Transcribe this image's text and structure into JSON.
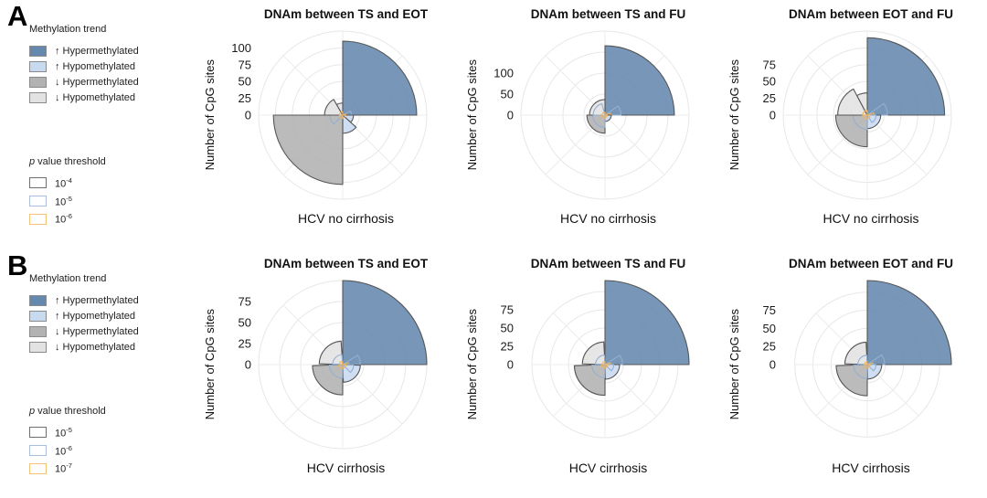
{
  "panels": [
    {
      "label": "A",
      "legend": {
        "methylation_title": "Methylation trend",
        "items": [
          {
            "label": "↑ Hypermethylated",
            "color": "#6589ae"
          },
          {
            "label": "↑ Hypomethylated",
            "color": "#c8daf0"
          },
          {
            "label": "↓ Hypermethylated",
            "color": "#b2b2b2"
          },
          {
            "label": "↓ Hypomethylated",
            "color": "#e2e2e2"
          }
        ],
        "pvalue_title_p": "p",
        "pvalue_title_rest": " value threshold",
        "thresholds": [
          {
            "base": "10",
            "exp": "-4",
            "border": "#6f6f6f"
          },
          {
            "base": "10",
            "exp": "-5",
            "border": "#a9c0dd"
          },
          {
            "base": "10",
            "exp": "-6",
            "border": "#f3c277"
          }
        ]
      }
    },
    {
      "label": "B",
      "legend": {
        "methylation_title": "Methylation trend",
        "items": [
          {
            "label": "↑ Hypermethylated",
            "color": "#6589ae"
          },
          {
            "label": "↑ Hypomethylated",
            "color": "#c8daf0"
          },
          {
            "label": "↓ Hypermethylated",
            "color": "#b2b2b2"
          },
          {
            "label": "↓ Hypomethylated",
            "color": "#e2e2e2"
          }
        ],
        "pvalue_title_p": "p",
        "pvalue_title_rest": " value threshold",
        "thresholds": [
          {
            "base": "10",
            "exp": "-5",
            "border": "#6f6f6f"
          },
          {
            "base": "10",
            "exp": "-6",
            "border": "#a9c0dd"
          },
          {
            "base": "10",
            "exp": "-7",
            "border": "#f3c277"
          }
        ]
      }
    }
  ],
  "chart_data": [
    {
      "type": "polar_bar",
      "panel": "A",
      "title": "DNAm between TS and EOT",
      "xlabel": "HCV no cirrhosis",
      "ylabel": "Number of CpG sites",
      "ticks": [
        100,
        75,
        50,
        25,
        0
      ],
      "ring_step": 25,
      "ring_max": 125,
      "grid": true,
      "series": [
        {
          "name": "↑ Hypermethylated",
          "quadrant": "NE",
          "color": "#6589ae",
          "sectors": [
            {
              "start": 0,
              "end": 90,
              "value": 110,
              "fill": true,
              "stroke": "#565656"
            },
            {
              "start": 62,
              "end": 90,
              "value": 13,
              "fill": false,
              "stroke": "#93afd1"
            },
            {
              "start": 75,
              "end": 90,
              "value": 5,
              "fill": false,
              "stroke": "#eeb35e"
            }
          ]
        },
        {
          "name": "↑ Hypomethylated",
          "quadrant": "SE",
          "color": "#c8daf0",
          "sectors": [
            {
              "start": 90,
              "end": 132,
              "value": 16,
              "fill": true,
              "stroke": "#565656"
            },
            {
              "start": 132,
              "end": 180,
              "value": 27,
              "fill": true,
              "stroke": "#565656"
            },
            {
              "start": 90,
              "end": 180,
              "value": 4,
              "fill": false,
              "stroke": "#eeb35e"
            }
          ]
        },
        {
          "name": "↓ Hypermethylated",
          "quadrant": "SW",
          "color": "#b2b2b2",
          "sectors": [
            {
              "start": 180,
              "end": 270,
              "value": 103,
              "fill": true,
              "stroke": "#565656"
            },
            {
              "start": 225,
              "end": 270,
              "value": 19,
              "fill": false,
              "stroke": "#93afd1"
            },
            {
              "start": 180,
              "end": 270,
              "value": 5,
              "fill": false,
              "stroke": "#eeb35e"
            }
          ]
        },
        {
          "name": "↓ Hypomethylated",
          "quadrant": "NW",
          "color": "#e2e2e2",
          "sectors": [
            {
              "start": 270,
              "end": 330,
              "value": 27,
              "fill": true,
              "stroke": "#565656"
            },
            {
              "start": 330,
              "end": 360,
              "value": 18,
              "fill": true,
              "stroke": "#565656"
            },
            {
              "start": 270,
              "end": 360,
              "value": 5,
              "fill": false,
              "stroke": "#eeb35e"
            }
          ]
        }
      ]
    },
    {
      "type": "polar_bar",
      "panel": "A",
      "title": "DNAm between TS and FU",
      "xlabel": "HCV no cirrhosis",
      "ylabel": "Number of CpG sites",
      "ticks": [
        100,
        50,
        0
      ],
      "ring_step": 50,
      "ring_max": 200,
      "grid": true,
      "series": [
        {
          "name": "↑ Hypermethylated",
          "quadrant": "NE",
          "color": "#6589ae",
          "sectors": [
            {
              "start": 0,
              "end": 90,
              "value": 165,
              "fill": true,
              "stroke": "#565656"
            },
            {
              "start": 55,
              "end": 90,
              "value": 38,
              "fill": false,
              "stroke": "#93afd1"
            },
            {
              "start": 72,
              "end": 90,
              "value": 14,
              "fill": false,
              "stroke": "#eeb35e"
            }
          ]
        },
        {
          "name": "↑ Hypomethylated",
          "quadrant": "SE",
          "color": "#c8daf0",
          "sectors": [
            {
              "start": 90,
              "end": 180,
              "value": 15,
              "fill": true,
              "stroke": "#565656"
            },
            {
              "start": 90,
              "end": 180,
              "value": 5,
              "fill": false,
              "stroke": "#eeb35e"
            }
          ]
        },
        {
          "name": "↓ Hypermethylated",
          "quadrant": "SW",
          "color": "#b2b2b2",
          "sectors": [
            {
              "start": 180,
              "end": 270,
              "value": 43,
              "fill": true,
              "stroke": "#565656"
            },
            {
              "start": 180,
              "end": 270,
              "value": 29,
              "fill": false,
              "stroke": "#93afd1"
            },
            {
              "start": 180,
              "end": 270,
              "value": 8,
              "fill": false,
              "stroke": "#eeb35e"
            }
          ]
        },
        {
          "name": "↓ Hypomethylated",
          "quadrant": "NW",
          "color": "#e2e2e2",
          "sectors": [
            {
              "start": 270,
              "end": 360,
              "value": 37,
              "fill": true,
              "stroke": "#565656"
            },
            {
              "start": 270,
              "end": 345,
              "value": 28,
              "fill": false,
              "stroke": "#93afd1"
            },
            {
              "start": 270,
              "end": 360,
              "value": 7,
              "fill": false,
              "stroke": "#eeb35e"
            }
          ]
        }
      ]
    },
    {
      "type": "polar_bar",
      "panel": "A",
      "title": "DNAm between EOT and FU",
      "xlabel": "HCV no cirrhosis",
      "ylabel": "Number of CpG sites",
      "ticks": [
        75,
        50,
        25,
        0
      ],
      "ring_step": 25,
      "ring_max": 125,
      "grid": true,
      "series": [
        {
          "name": "↑ Hypermethylated",
          "quadrant": "NE",
          "color": "#6589ae",
          "sectors": [
            {
              "start": 0,
              "end": 90,
              "value": 115,
              "fill": true,
              "stroke": "#565656"
            },
            {
              "start": 55,
              "end": 90,
              "value": 30,
              "fill": false,
              "stroke": "#93afd1"
            },
            {
              "start": 72,
              "end": 90,
              "value": 10,
              "fill": false,
              "stroke": "#eeb35e"
            }
          ]
        },
        {
          "name": "↑ Hypomethylated",
          "quadrant": "SE",
          "color": "#c8daf0",
          "sectors": [
            {
              "start": 90,
              "end": 180,
              "value": 20,
              "fill": true,
              "stroke": "#565656"
            },
            {
              "start": 90,
              "end": 148,
              "value": 13,
              "fill": false,
              "stroke": "#93afd1"
            },
            {
              "start": 90,
              "end": 180,
              "value": 4,
              "fill": false,
              "stroke": "#eeb35e"
            }
          ]
        },
        {
          "name": "↓ Hypermethylated",
          "quadrant": "SW",
          "color": "#b2b2b2",
          "sectors": [
            {
              "start": 180,
              "end": 270,
              "value": 47,
              "fill": true,
              "stroke": "#565656"
            },
            {
              "start": 180,
              "end": 270,
              "value": 21,
              "fill": false,
              "stroke": "#93afd1"
            },
            {
              "start": 180,
              "end": 270,
              "value": 6,
              "fill": false,
              "stroke": "#eeb35e"
            }
          ]
        },
        {
          "name": "↓ Hypomethylated",
          "quadrant": "NW",
          "color": "#e2e2e2",
          "sectors": [
            {
              "start": 270,
              "end": 332,
              "value": 44,
              "fill": true,
              "stroke": "#565656"
            },
            {
              "start": 332,
              "end": 360,
              "value": 33,
              "fill": true,
              "stroke": "#565656"
            },
            {
              "start": 270,
              "end": 360,
              "value": 7,
              "fill": false,
              "stroke": "#eeb35e"
            }
          ]
        }
      ]
    },
    {
      "type": "polar_bar",
      "panel": "B",
      "title": "DNAm between TS and EOT",
      "xlabel": "HCV cirrhosis",
      "ylabel": "Number of CpG sites",
      "ticks": [
        75,
        50,
        25,
        0
      ],
      "ring_step": 25,
      "ring_max": 100,
      "grid": true,
      "series": [
        {
          "name": "↑ Hypermethylated",
          "quadrant": "NE",
          "color": "#6589ae",
          "sectors": [
            {
              "start": 0,
              "end": 90,
              "value": 100,
              "fill": true,
              "stroke": "#565656"
            },
            {
              "start": 58,
              "end": 90,
              "value": 21,
              "fill": false,
              "stroke": "#93afd1"
            },
            {
              "start": 74,
              "end": 90,
              "value": 7,
              "fill": false,
              "stroke": "#eeb35e"
            }
          ]
        },
        {
          "name": "↑ Hypomethylated",
          "quadrant": "SE",
          "color": "#c8daf0",
          "sectors": [
            {
              "start": 92,
              "end": 178,
              "value": 21,
              "fill": true,
              "stroke": "#565656"
            },
            {
              "start": 92,
              "end": 135,
              "value": 13,
              "fill": false,
              "stroke": "#93afd1"
            },
            {
              "start": 92,
              "end": 178,
              "value": 4,
              "fill": false,
              "stroke": "#eeb35e"
            }
          ]
        },
        {
          "name": "↓ Hypermethylated",
          "quadrant": "SW",
          "color": "#b2b2b2",
          "sectors": [
            {
              "start": 180,
              "end": 268,
              "value": 36,
              "fill": true,
              "stroke": "#565656"
            },
            {
              "start": 180,
              "end": 268,
              "value": 16,
              "fill": false,
              "stroke": "#93afd1"
            },
            {
              "start": 180,
              "end": 268,
              "value": 5,
              "fill": false,
              "stroke": "#eeb35e"
            }
          ]
        },
        {
          "name": "↓ Hypomethylated",
          "quadrant": "NW",
          "color": "#e2e2e2",
          "sectors": [
            {
              "start": 272,
              "end": 356,
              "value": 28,
              "fill": true,
              "stroke": "#565656"
            },
            {
              "start": 272,
              "end": 356,
              "value": 12,
              "fill": false,
              "stroke": "#93afd1"
            },
            {
              "start": 272,
              "end": 356,
              "value": 4,
              "fill": false,
              "stroke": "#eeb35e"
            }
          ]
        }
      ]
    },
    {
      "type": "polar_bar",
      "panel": "B",
      "title": "DNAm between TS and FU",
      "xlabel": "HCV cirrhosis",
      "ylabel": "Number of CpG sites",
      "ticks": [
        75,
        50,
        25,
        0
      ],
      "ring_step": 25,
      "ring_max": 100,
      "grid": true,
      "series": [
        {
          "name": "↑ Hypermethylated",
          "quadrant": "NE",
          "color": "#6589ae",
          "sectors": [
            {
              "start": 0,
              "end": 90,
              "value": 115,
              "fill": true,
              "stroke": "#565656"
            },
            {
              "start": 58,
              "end": 90,
              "value": 24,
              "fill": false,
              "stroke": "#93afd1"
            },
            {
              "start": 74,
              "end": 90,
              "value": 8,
              "fill": false,
              "stroke": "#eeb35e"
            }
          ]
        },
        {
          "name": "↑ Hypomethylated",
          "quadrant": "SE",
          "color": "#c8daf0",
          "sectors": [
            {
              "start": 90,
              "end": 178,
              "value": 20,
              "fill": true,
              "stroke": "#565656"
            },
            {
              "start": 90,
              "end": 135,
              "value": 12,
              "fill": false,
              "stroke": "#93afd1"
            },
            {
              "start": 90,
              "end": 178,
              "value": 4,
              "fill": false,
              "stroke": "#eeb35e"
            }
          ]
        },
        {
          "name": "↓ Hypermethylated",
          "quadrant": "SW",
          "color": "#b2b2b2",
          "sectors": [
            {
              "start": 180,
              "end": 268,
              "value": 42,
              "fill": true,
              "stroke": "#565656"
            },
            {
              "start": 180,
              "end": 268,
              "value": 18,
              "fill": false,
              "stroke": "#93afd1"
            },
            {
              "start": 180,
              "end": 268,
              "value": 5,
              "fill": false,
              "stroke": "#eeb35e"
            }
          ]
        },
        {
          "name": "↓ Hypomethylated",
          "quadrant": "NW",
          "color": "#e2e2e2",
          "sectors": [
            {
              "start": 272,
              "end": 357,
              "value": 31,
              "fill": true,
              "stroke": "#565656"
            },
            {
              "start": 272,
              "end": 357,
              "value": 13,
              "fill": false,
              "stroke": "#93afd1"
            },
            {
              "start": 272,
              "end": 357,
              "value": 4,
              "fill": false,
              "stroke": "#eeb35e"
            }
          ]
        }
      ]
    },
    {
      "type": "polar_bar",
      "panel": "B",
      "title": "DNAm between EOT and FU",
      "xlabel": "HCV cirrhosis",
      "ylabel": "Number of CpG sites",
      "ticks": [
        75,
        50,
        25,
        0
      ],
      "ring_step": 25,
      "ring_max": 100,
      "grid": true,
      "series": [
        {
          "name": "↑ Hypermethylated",
          "quadrant": "NE",
          "color": "#6589ae",
          "sectors": [
            {
              "start": 0,
              "end": 90,
              "value": 116,
              "fill": true,
              "stroke": "#565656"
            },
            {
              "start": 56,
              "end": 90,
              "value": 24,
              "fill": false,
              "stroke": "#93afd1"
            },
            {
              "start": 73,
              "end": 90,
              "value": 8,
              "fill": false,
              "stroke": "#eeb35e"
            }
          ]
        },
        {
          "name": "↑ Hypomethylated",
          "quadrant": "SE",
          "color": "#c8daf0",
          "sectors": [
            {
              "start": 90,
              "end": 178,
              "value": 20,
              "fill": true,
              "stroke": "#565656"
            },
            {
              "start": 90,
              "end": 135,
              "value": 12,
              "fill": false,
              "stroke": "#93afd1"
            },
            {
              "start": 90,
              "end": 178,
              "value": 4,
              "fill": false,
              "stroke": "#eeb35e"
            }
          ]
        },
        {
          "name": "↓ Hypermethylated",
          "quadrant": "SW",
          "color": "#b2b2b2",
          "sectors": [
            {
              "start": 180,
              "end": 268,
              "value": 43,
              "fill": true,
              "stroke": "#565656"
            },
            {
              "start": 180,
              "end": 268,
              "value": 19,
              "fill": false,
              "stroke": "#93afd1"
            },
            {
              "start": 180,
              "end": 268,
              "value": 5,
              "fill": false,
              "stroke": "#eeb35e"
            }
          ]
        },
        {
          "name": "↓ Hypomethylated",
          "quadrant": "NW",
          "color": "#e2e2e2",
          "sectors": [
            {
              "start": 272,
              "end": 357,
              "value": 31,
              "fill": true,
              "stroke": "#565656"
            },
            {
              "start": 272,
              "end": 357,
              "value": 13,
              "fill": false,
              "stroke": "#93afd1"
            },
            {
              "start": 272,
              "end": 357,
              "value": 4,
              "fill": false,
              "stroke": "#eeb35e"
            }
          ]
        }
      ]
    }
  ],
  "style": {
    "ring_color": "#e7e7e7",
    "spoke_color": "#ececec",
    "tick_color": "#1a1a1a"
  }
}
